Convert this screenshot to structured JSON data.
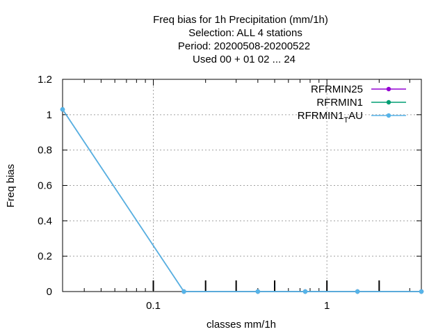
{
  "chart_data": {
    "type": "line",
    "title_lines": [
      "Freq bias  for 1h Precipitation (mm/1h)",
      "Selection: ALL      4 stations",
      "Period: 20200508-20200522",
      "Used  00 + 01 02 ... 24"
    ],
    "xlabel": "classes mm/1h",
    "ylabel": "Freq bias",
    "x_scale": "log",
    "xlim": [
      0.03,
      3.5
    ],
    "ylim": [
      0,
      1.2
    ],
    "x_ticks": [
      {
        "value": 0.1,
        "label": "0.1"
      },
      {
        "value": 1,
        "label": "1"
      }
    ],
    "y_ticks": [
      {
        "value": 0,
        "label": "0"
      },
      {
        "value": 0.2,
        "label": "0.2"
      },
      {
        "value": 0.4,
        "label": "0.4"
      },
      {
        "value": 0.6,
        "label": "0.6"
      },
      {
        "value": 0.8,
        "label": "0.8"
      },
      {
        "value": 1,
        "label": "1"
      },
      {
        "value": 1.2,
        "label": "1.2"
      }
    ],
    "grid": true,
    "legend_position": "top-right",
    "class_marks": [
      0.1,
      0.2,
      0.3,
      0.5,
      1,
      2
    ],
    "series": [
      {
        "name": "RFRMIN25",
        "color": "#9400d3",
        "x": [
          0.03,
          0.15,
          0.4,
          0.75,
          1.5,
          3.5
        ],
        "y": [
          1.03,
          0,
          0,
          0,
          0,
          0
        ]
      },
      {
        "name": "RFRMIN1",
        "color": "#009e73",
        "x": [
          0.03,
          0.15,
          0.4,
          0.75,
          1.5,
          3.5
        ],
        "y": [
          1.03,
          0,
          0,
          0,
          0,
          0
        ]
      },
      {
        "name": "RFRMIN1",
        "subscript": "T",
        "name_suffix": "AU",
        "color": "#56b4e9",
        "x": [
          0.03,
          0.15,
          0.4,
          0.75,
          1.5,
          3.5
        ],
        "y": [
          1.03,
          0,
          0,
          0,
          0,
          0
        ]
      }
    ]
  }
}
